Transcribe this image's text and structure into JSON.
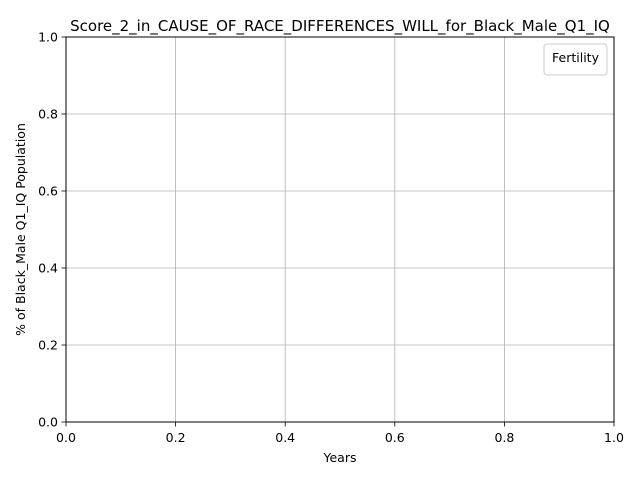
{
  "chart_data": {
    "type": "line",
    "title": "Score_2_in_CAUSE_OF_RACE_DIFFERENCES_WILL_for_Black_Male_Q1_IQ",
    "xlabel": "Years",
    "ylabel": "% of Black_Male Q1_IQ Population",
    "xlim": [
      0.0,
      1.0
    ],
    "ylim": [
      0.0,
      1.0
    ],
    "xticks": [
      "0.0",
      "0.2",
      "0.4",
      "0.6",
      "0.8",
      "1.0"
    ],
    "yticks": [
      "0.0",
      "0.2",
      "0.4",
      "0.6",
      "0.8",
      "1.0"
    ],
    "grid": true,
    "legend": {
      "title": "Fertility",
      "placement": "top-right",
      "entries": []
    },
    "series": []
  }
}
